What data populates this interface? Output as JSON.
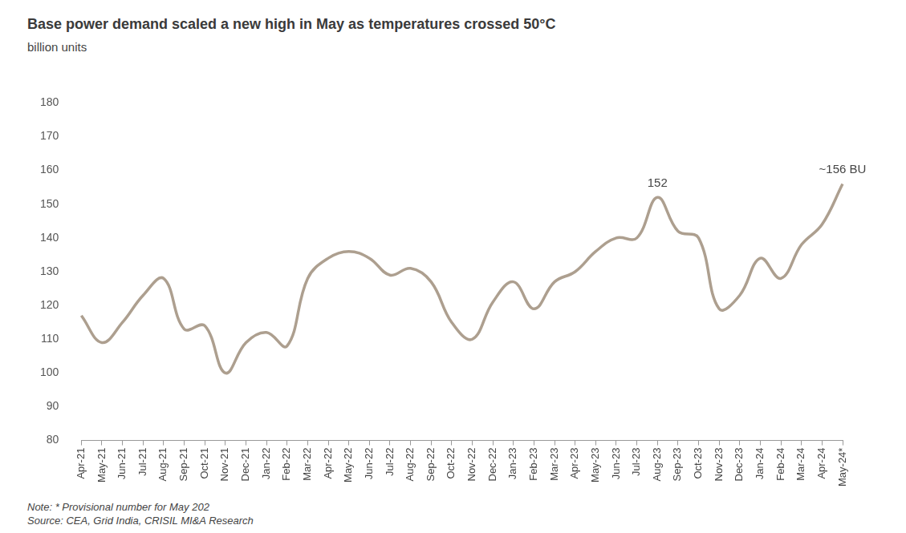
{
  "chart_data": {
    "type": "line",
    "title": "Base power demand scaled a new high in May as temperatures crossed 50°C",
    "subtitle": "billion units",
    "categories": [
      "Apr-21",
      "May-21",
      "Jun-21",
      "Jul-21",
      "Aug-21",
      "Sep-21",
      "Oct-21",
      "Nov-21",
      "Dec-21",
      "Jan-22",
      "Feb-22",
      "Mar-22",
      "Apr-22",
      "May-22",
      "Jun-22",
      "Jul-22",
      "Aug-22",
      "Sep-22",
      "Oct-22",
      "Nov-22",
      "Dec-22",
      "Jan-23",
      "Feb-23",
      "Mar-23",
      "Apr-23",
      "May-23",
      "Jun-23",
      "Jul-23",
      "Aug-23",
      "Sep-23",
      "Oct-23",
      "Nov-23",
      "Dec-23",
      "Jan-24",
      "Feb-24",
      "Mar-24",
      "Apr-24",
      "May-24*"
    ],
    "values": [
      117,
      109,
      115,
      123,
      128,
      113,
      114,
      100,
      109,
      112,
      108,
      128,
      134,
      136,
      134,
      129,
      131,
      127,
      115,
      110,
      121,
      127,
      119,
      127,
      130,
      136,
      140,
      140,
      152,
      142,
      140,
      119,
      123,
      134,
      128,
      138,
      144,
      156
    ],
    "color": "#ad9f8f",
    "ylim": [
      80,
      180
    ],
    "yticks": [
      80,
      90,
      100,
      110,
      120,
      130,
      140,
      150,
      160,
      170,
      180
    ],
    "grid": false,
    "annotations": [
      {
        "category": "Aug-23",
        "value": 152,
        "label": "152"
      },
      {
        "category": "May-24*",
        "value": 156,
        "label": "~156 BU"
      }
    ],
    "notes": [
      "Note: * Provisional number for May 202",
      "Source: CEA, Grid India, CRISIL MI&A Research"
    ]
  }
}
